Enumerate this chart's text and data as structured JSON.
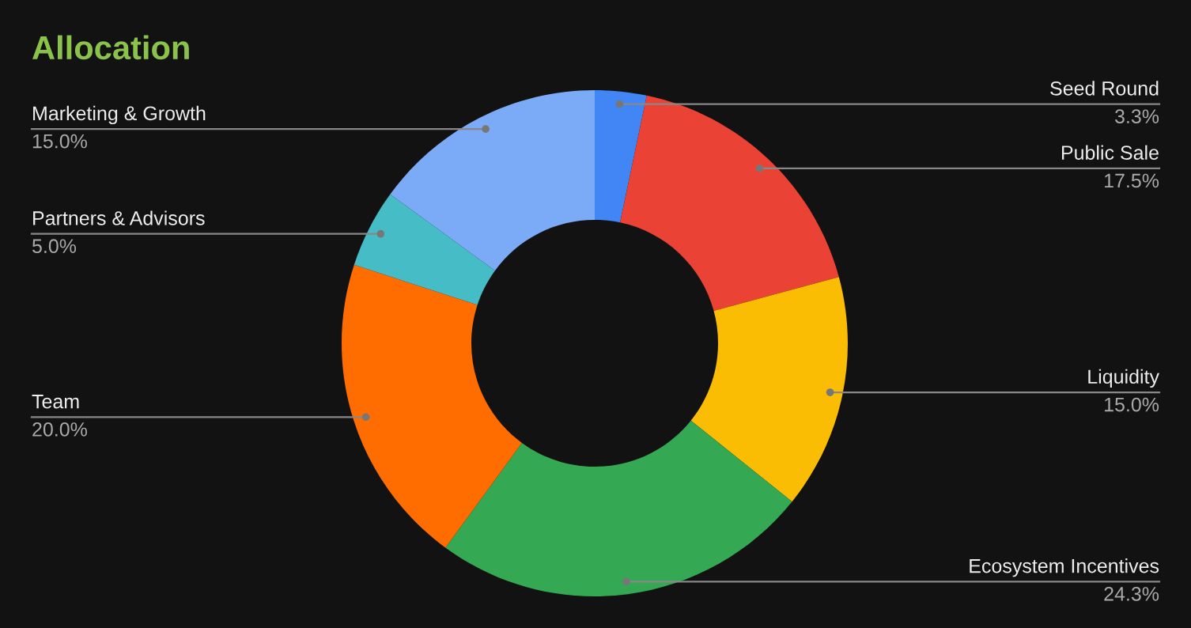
{
  "chart_data": {
    "type": "donut",
    "title": "Allocation",
    "categories": [
      "Seed Round",
      "Public Sale",
      "Liquidity",
      "Ecosystem Incentives",
      "Team",
      "Partners & Advisors",
      "Marketing & Growth"
    ],
    "values": [
      3.3,
      17.5,
      15.0,
      24.3,
      20.0,
      5.0,
      15.0
    ],
    "value_labels": [
      "3.3%",
      "17.5%",
      "15.0%",
      "24.3%",
      "20.0%",
      "5.0%",
      "15.0%"
    ],
    "colors": [
      "#4285f4",
      "#ea4335",
      "#fbbc04",
      "#34a853",
      "#ff6d01",
      "#46bdc6",
      "#7baaf7"
    ]
  }
}
